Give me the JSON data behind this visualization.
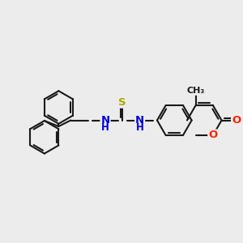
{
  "bg_color": "#ececec",
  "bond_color": "#1a1a1a",
  "bond_lw": 1.5,
  "atom_colors": {
    "N": "#0000dd",
    "O": "#ff2200",
    "S": "#aaaa00",
    "C": "#1a1a1a"
  },
  "font_size": 8.5,
  "fig_size": [
    3.0,
    3.0
  ],
  "dpi": 100,
  "xlim": [
    0,
    10
  ],
  "ylim": [
    1,
    9
  ]
}
